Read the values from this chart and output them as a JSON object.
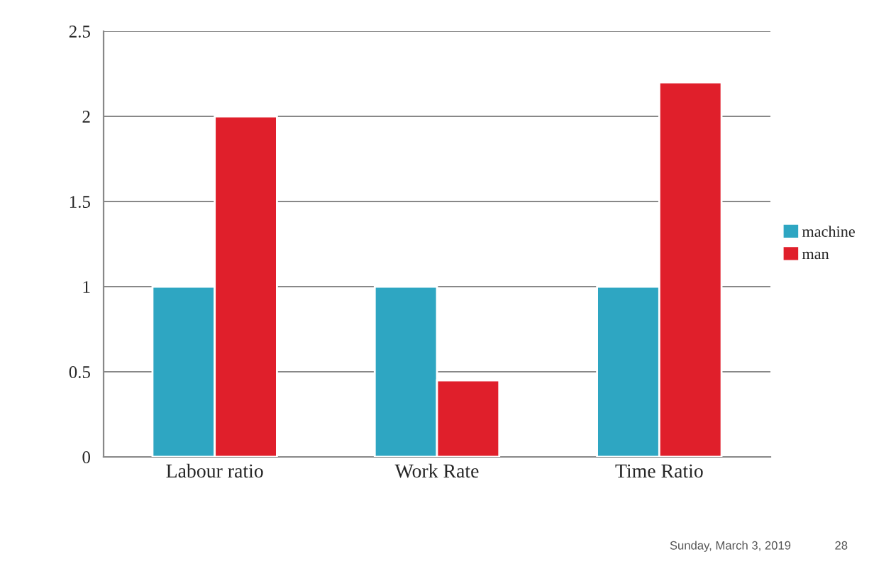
{
  "chart_data": {
    "type": "bar",
    "categories": [
      "Labour ratio",
      "Work Rate",
      "Time Ratio"
    ],
    "series": [
      {
        "name": "machine",
        "color": "#2ea6c2",
        "values": [
          1,
          1,
          1
        ]
      },
      {
        "name": "man",
        "color": "#e01f2b",
        "values": [
          2,
          0.45,
          2.2
        ]
      }
    ],
    "ylim": [
      0,
      2.5
    ],
    "yticks": [
      {
        "value": 0,
        "label": "0"
      },
      0.5,
      1,
      1.5,
      2,
      2.5
    ],
    "grid": "y",
    "legend": "right",
    "annotations": [
      "Sunday, March 3, 2019",
      "28"
    ]
  }
}
